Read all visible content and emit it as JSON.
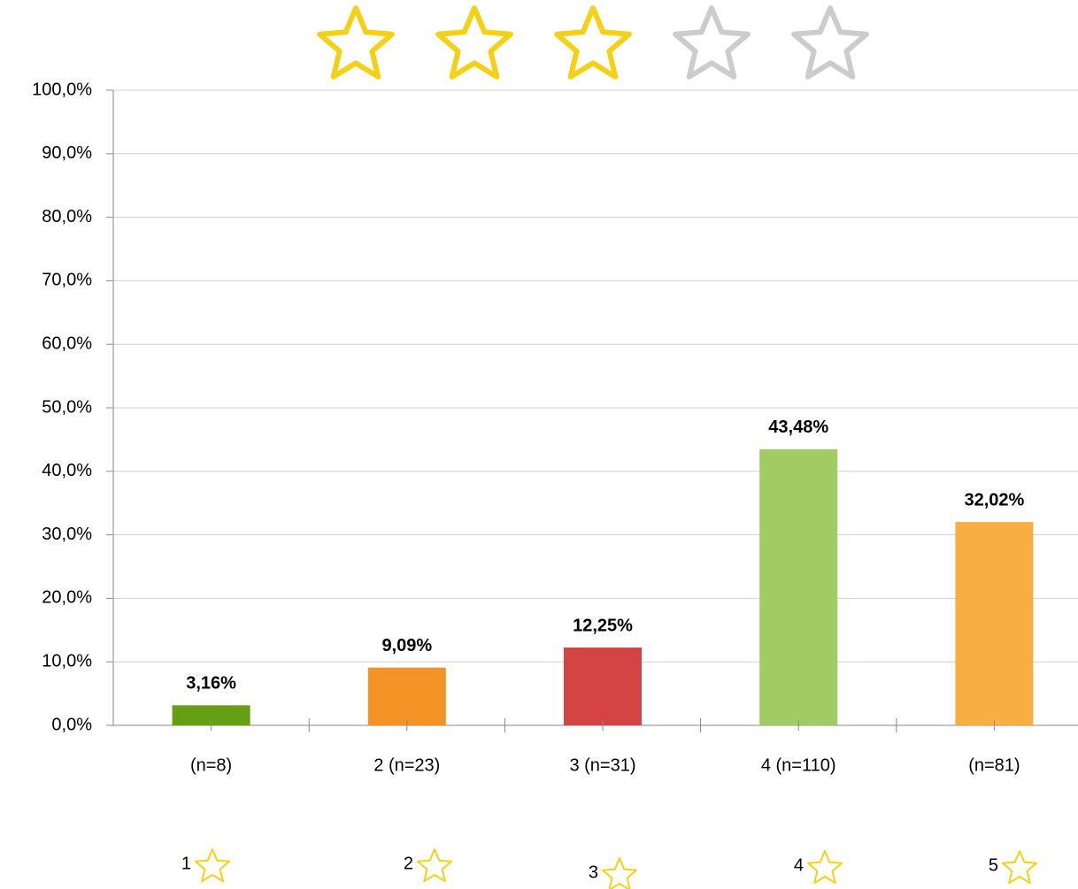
{
  "chart_data": {
    "type": "bar",
    "categories": [
      "(n=8)",
      "2 (n=23)",
      "3 (n=31)",
      "4 (n=110)",
      "(n=81)"
    ],
    "values": [
      3.16,
      9.09,
      12.25,
      43.48,
      32.02
    ],
    "value_labels": [
      "3,16%",
      "9,09%",
      "12,25%",
      "43,48%",
      "32,02%"
    ],
    "colors": [
      "#669e14",
      "#f39325",
      "#d44444",
      "#a3cb63",
      "#f9ae42"
    ],
    "ylim": [
      0,
      100
    ],
    "yticks": [
      {
        "value": 0,
        "label": "0,0%"
      },
      {
        "value": 10,
        "label": "10,0%"
      },
      {
        "value": 20,
        "label": "20,0%"
      },
      {
        "value": 30,
        "label": "30,0%"
      },
      {
        "value": 40,
        "label": "40,0%"
      },
      {
        "value": 50,
        "label": "50,0%"
      },
      {
        "value": 60,
        "label": "60,0%"
      },
      {
        "value": 70,
        "label": "70,0%"
      },
      {
        "value": 80,
        "label": "80,0%"
      },
      {
        "value": 90,
        "label": "90,0%"
      },
      {
        "value": 100,
        "label": "100,0%"
      }
    ],
    "grid": true,
    "rating_labels": [
      "1",
      "2",
      "3",
      "4",
      "5"
    ]
  },
  "rating": {
    "filled": 3,
    "total": 5
  }
}
